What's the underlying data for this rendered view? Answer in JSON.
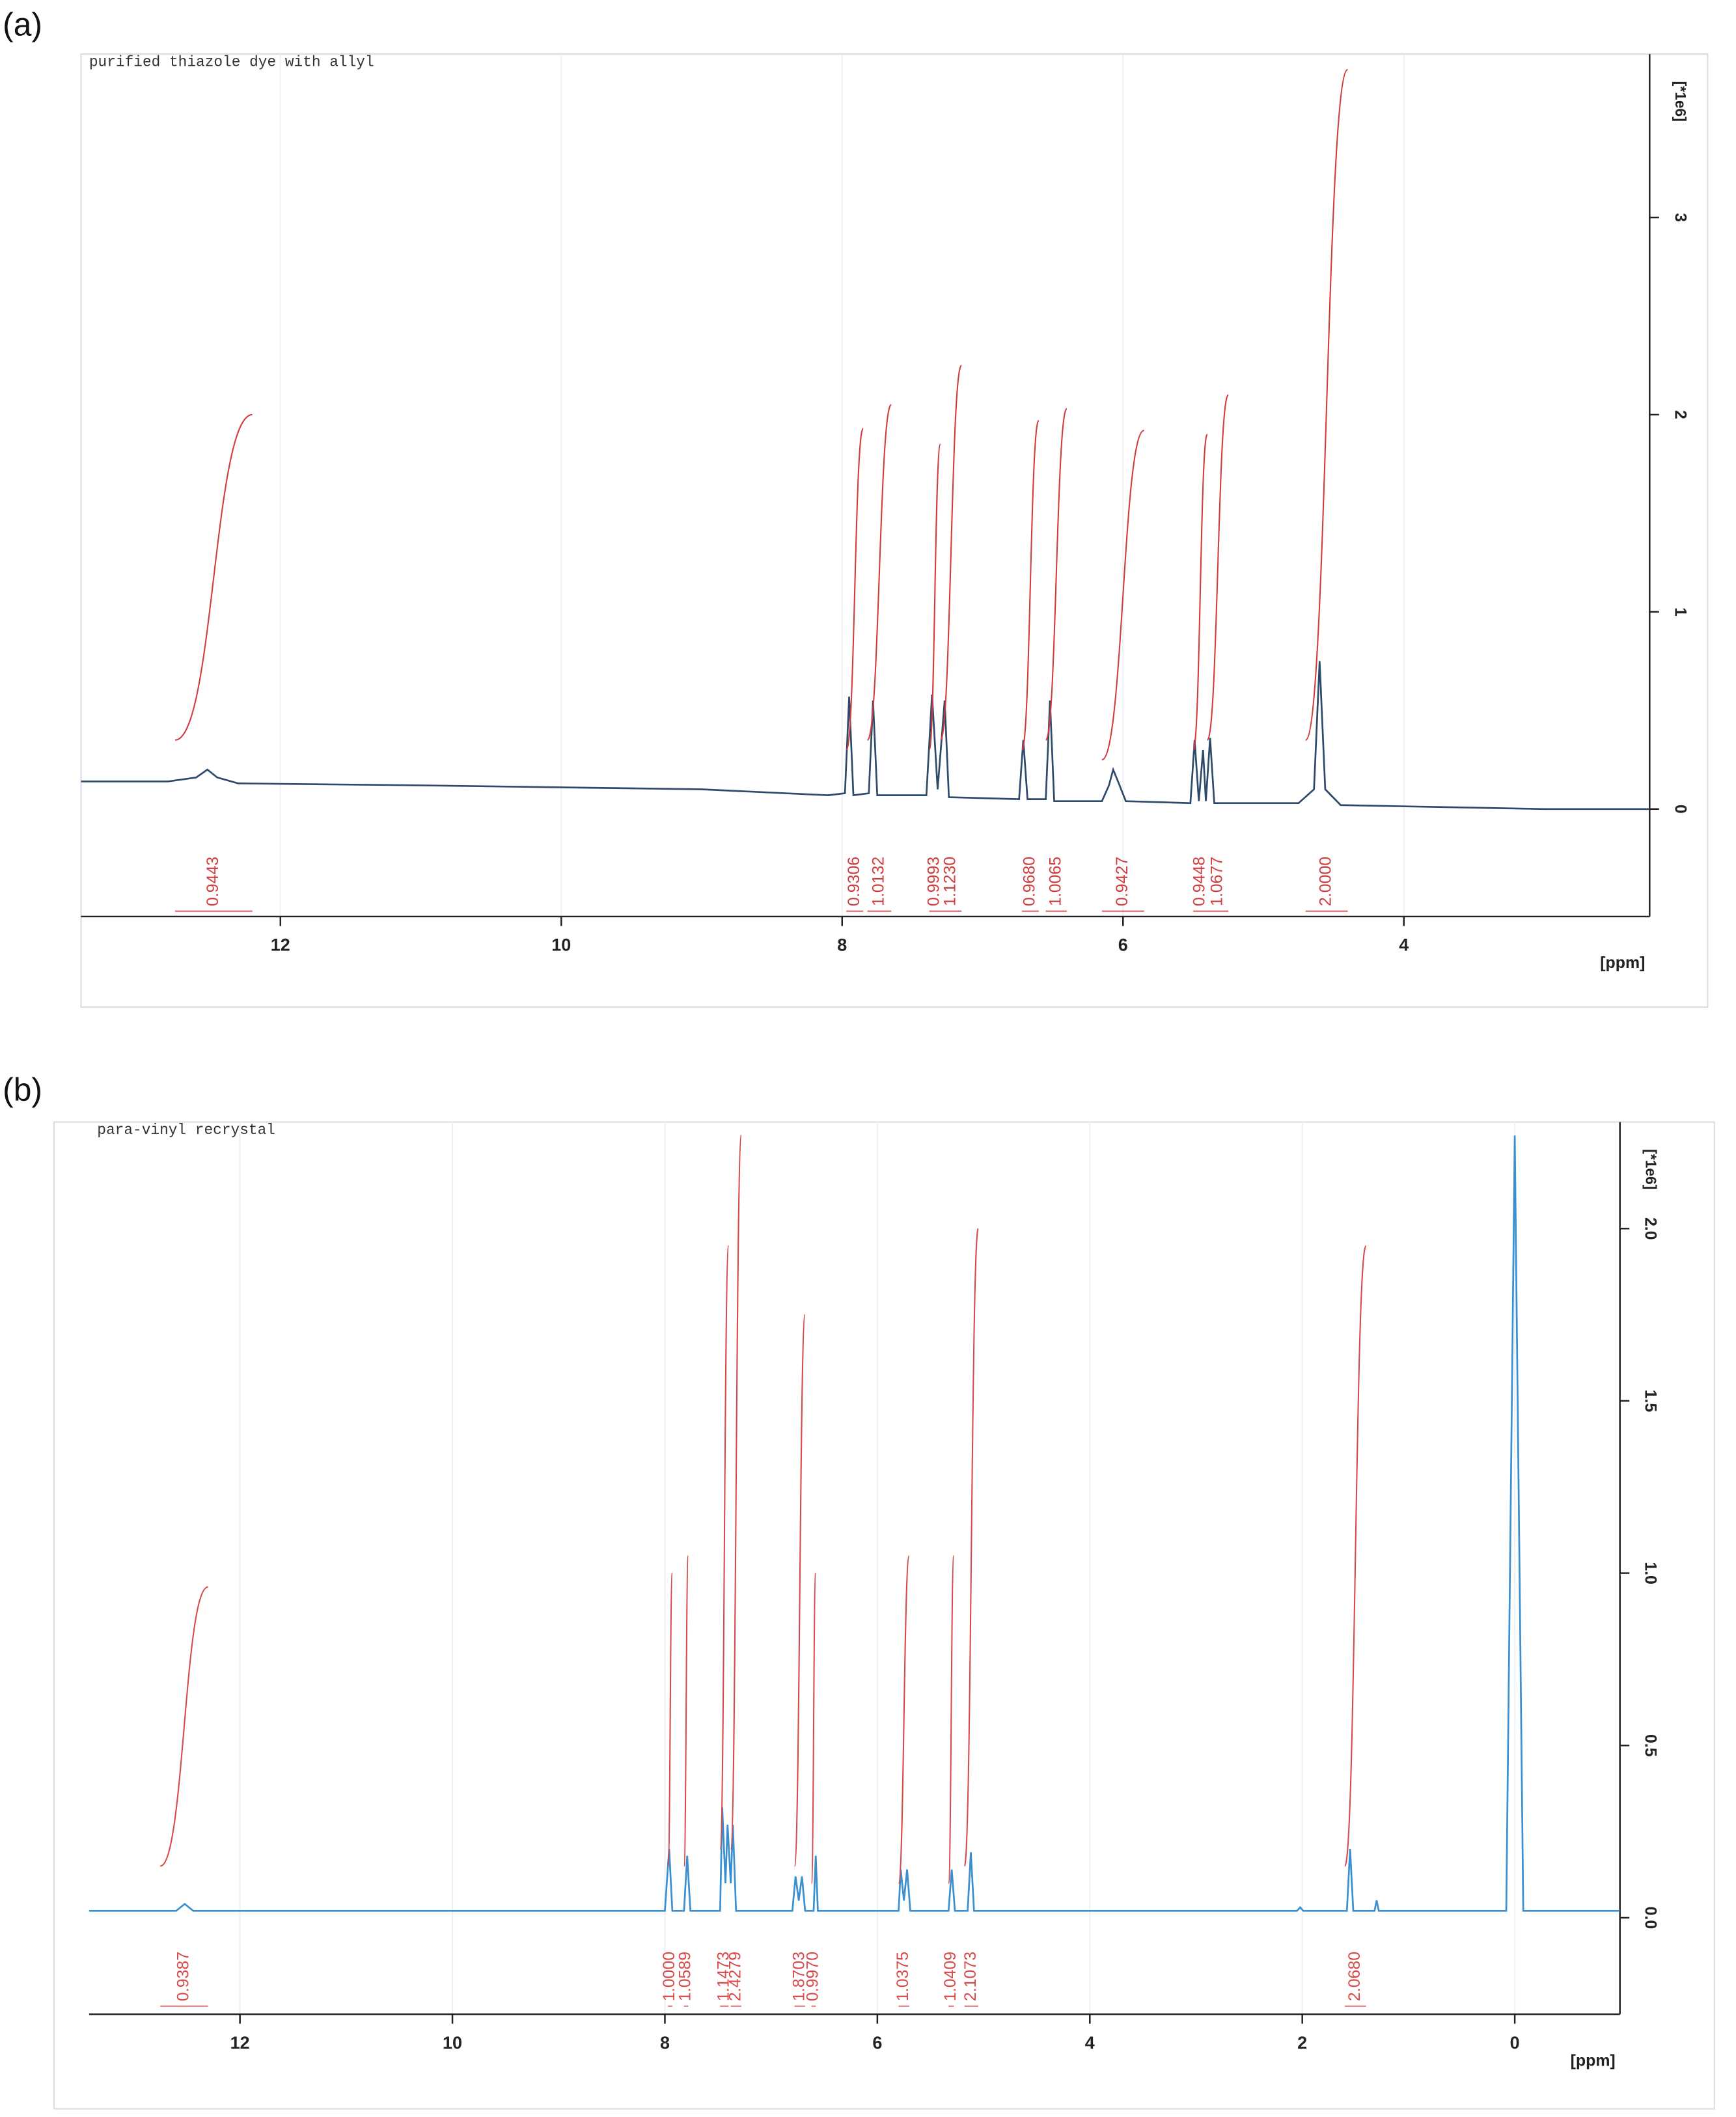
{
  "chart_data": [
    {
      "type": "line",
      "panel_label": "(a)",
      "title": "purified thiazole dye with allyl",
      "x_label": "[ppm]",
      "y_label": "[*1e6]",
      "color": "#2e4a6b",
      "integral_color": "#d03c3c",
      "xlim": [
        13.42,
        2.25
      ],
      "ylim": [
        -0.6,
        3.76
      ],
      "xticks": [
        12,
        10,
        8,
        6,
        4
      ],
      "yticks": [
        0,
        1,
        2,
        3
      ],
      "x": [
        13.42,
        12.8,
        12.6,
        12.52,
        12.45,
        12.3,
        11,
        9,
        8.1,
        7.98,
        7.95,
        7.92,
        7.81,
        7.78,
        7.75,
        7.4,
        7.36,
        7.32,
        7.27,
        7.24,
        6.74,
        6.71,
        6.68,
        6.55,
        6.52,
        6.49,
        6.15,
        6.1,
        6.07,
        6.03,
        5.98,
        5.52,
        5.49,
        5.46,
        5.43,
        5.41,
        5.38,
        5.35,
        4.75,
        4.64,
        4.6,
        4.56,
        4.45,
        3,
        2.25
      ],
      "y": [
        0.14,
        0.14,
        0.16,
        0.2,
        0.16,
        0.13,
        0.12,
        0.1,
        0.07,
        0.08,
        0.57,
        0.07,
        0.08,
        0.55,
        0.07,
        0.07,
        0.58,
        0.1,
        0.55,
        0.06,
        0.05,
        0.35,
        0.05,
        0.05,
        0.55,
        0.04,
        0.04,
        0.12,
        0.2,
        0.13,
        0.04,
        0.03,
        0.35,
        0.04,
        0.3,
        0.04,
        0.36,
        0.03,
        0.03,
        0.1,
        0.75,
        0.1,
        0.02,
        0,
        0
      ],
      "integrals": {
        "values": [
          0.9443,
          0.9306,
          1.0132,
          0.9993,
          1.123,
          0.968,
          1.0065,
          0.9427,
          0.9448,
          1.0677,
          2.0
        ],
        "value_labels": [
          "0.9443",
          "0.9306",
          "1.0132",
          "0.9993",
          "1.1230",
          "0.9680",
          "1.0065",
          "0.9427",
          "0.9448",
          "1.0677",
          "2.0000"
        ],
        "ranges": [
          [
            12.75,
            12.2
          ],
          [
            7.97,
            7.85
          ],
          [
            7.82,
            7.65
          ],
          [
            7.38,
            7.3
          ],
          [
            7.3,
            7.15
          ],
          [
            6.72,
            6.6
          ],
          [
            6.55,
            6.4
          ],
          [
            6.15,
            5.85
          ],
          [
            5.5,
            5.4
          ],
          [
            5.4,
            5.25
          ],
          [
            4.7,
            4.4
          ]
        ],
        "heights": [
          [
            0.35,
            2.0
          ],
          [
            0.3,
            1.93
          ],
          [
            0.35,
            2.05
          ],
          [
            0.3,
            1.85
          ],
          [
            0.35,
            2.25
          ],
          [
            0.3,
            1.97
          ],
          [
            0.35,
            2.03
          ],
          [
            0.25,
            1.92
          ],
          [
            0.3,
            1.9
          ],
          [
            0.35,
            2.1
          ],
          [
            0.35,
            3.75
          ]
        ]
      }
    },
    {
      "type": "line",
      "panel_label": "(b)",
      "title": "para-vinyl recrystal",
      "x_label": "[ppm]",
      "y_label": "[*1e6]",
      "color": "#3a8fd0",
      "integral_color": "#d84a4a",
      "xlim": [
        13.42,
        -0.99
      ],
      "ylim": [
        -0.28,
        2.27
      ],
      "xticks": [
        12,
        10,
        8,
        6,
        4,
        2,
        0
      ],
      "yticks": [
        {
          "value": 0,
          "label": "0.0"
        },
        0.5,
        {
          "value": 1,
          "label": "1.0"
        },
        1.5,
        {
          "value": 2,
          "label": "2.0"
        }
      ],
      "x": [
        13.42,
        12.6,
        12.52,
        12.44,
        8.0,
        7.96,
        7.93,
        7.82,
        7.79,
        7.76,
        7.48,
        7.46,
        7.43,
        7.41,
        7.38,
        7.36,
        7.33,
        6.8,
        6.77,
        6.74,
        6.71,
        6.68,
        6.6,
        6.58,
        6.56,
        5.8,
        5.78,
        5.75,
        5.72,
        5.69,
        5.33,
        5.3,
        5.27,
        5.15,
        5.12,
        5.09,
        2.05,
        2.02,
        1.99,
        1.58,
        1.55,
        1.52,
        1.32,
        1.3,
        1.28,
        0.08,
        0,
        -0.08,
        -0.99
      ],
      "y": [
        0.02,
        0.02,
        0.04,
        0.02,
        0.02,
        0.2,
        0.02,
        0.02,
        0.18,
        0.02,
        0.02,
        0.32,
        0.1,
        0.27,
        0.1,
        0.27,
        0.02,
        0.02,
        0.12,
        0.05,
        0.12,
        0.02,
        0.02,
        0.18,
        0.02,
        0.02,
        0.14,
        0.05,
        0.14,
        0.02,
        0.02,
        0.14,
        0.02,
        0.02,
        0.19,
        0.02,
        0.02,
        0.03,
        0.02,
        0.02,
        0.2,
        0.02,
        0.02,
        0.05,
        0.02,
        0.02,
        2.27,
        0.02,
        0.02
      ],
      "integrals": {
        "values": [
          0.9387,
          1.0,
          1.0589,
          1.1473,
          2.4279,
          1.8703,
          0.997,
          1.0375,
          1.0409,
          2.1073,
          2.068
        ],
        "value_labels": [
          "0.9387",
          "1.0000",
          "1.0589",
          "1.1473",
          "2.4279",
          "1.8703",
          "0.9970",
          "1.0375",
          "1.0409",
          "2.1073",
          "2.0680"
        ],
        "ranges": [
          [
            12.75,
            12.3
          ],
          [
            7.97,
            7.93
          ],
          [
            7.82,
            7.78
          ],
          [
            7.48,
            7.4
          ],
          [
            7.38,
            7.28
          ],
          [
            6.78,
            6.68
          ],
          [
            6.62,
            6.58
          ],
          [
            5.8,
            5.7
          ],
          [
            5.33,
            5.28
          ],
          [
            5.18,
            5.05
          ],
          [
            1.6,
            1.4
          ]
        ],
        "heights": [
          [
            0.15,
            0.96
          ],
          [
            0.15,
            1.0
          ],
          [
            0.15,
            1.05
          ],
          [
            0.2,
            1.95
          ],
          [
            0.2,
            2.27
          ],
          [
            0.15,
            1.75
          ],
          [
            0.1,
            1.0
          ],
          [
            0.1,
            1.05
          ],
          [
            0.1,
            1.05
          ],
          [
            0.15,
            2.0
          ],
          [
            0.15,
            1.95
          ]
        ]
      }
    }
  ]
}
